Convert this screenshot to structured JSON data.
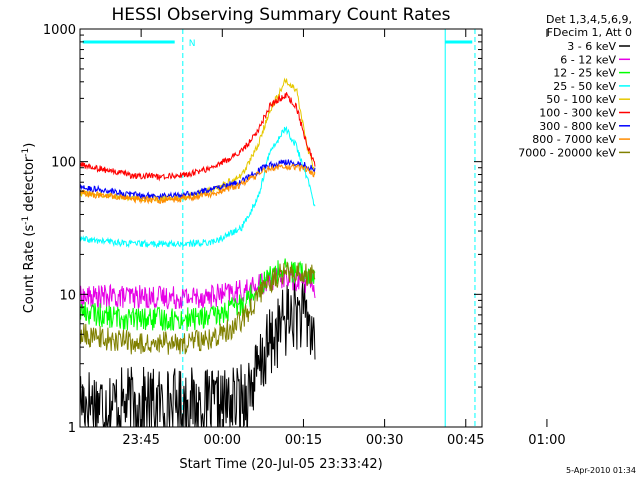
{
  "chart_data": {
    "type": "line",
    "title": "HESSI Observing Summary Count Rates",
    "xlabel": "Start Time (20-Jul-05 23:33:42)",
    "ylabel": "Count Rate (s⁻¹ detector⁻¹)",
    "y_scale": "log",
    "ylim": [
      1,
      1000
    ],
    "xlim_minutes_after_start": [
      0,
      74.3
    ],
    "x_ticks": [
      "23:45",
      "00:00",
      "00:15",
      "00:30",
      "00:45",
      "01:00"
    ],
    "y_ticks": [
      "1",
      "10",
      "100",
      "1000"
    ],
    "legend_header": [
      "Det 1,3,4,5,6,9,",
      "FDecim 1, Att 0"
    ],
    "legend_position": "right",
    "flag_label": "N",
    "date_stamp": "5-Apr-2010 01:34",
    "x": [
      0,
      5,
      10,
      15,
      20,
      25,
      30,
      33,
      35,
      38,
      40,
      42,
      43.5
    ],
    "series": [
      {
        "name": "3 - 6 keV",
        "color": "#000000",
        "values": [
          1.6,
          1.5,
          1.5,
          1.5,
          1.5,
          1.4,
          1.6,
          2.6,
          4.2,
          6.5,
          7.2,
          6.4,
          4.5
        ]
      },
      {
        "name": "6 - 12 keV",
        "color": "#e600e6",
        "values": [
          9.5,
          9.6,
          9.6,
          9.5,
          9.5,
          9.8,
          10.5,
          11.5,
          12.8,
          13.5,
          13.0,
          12.5,
          11.5
        ]
      },
      {
        "name": "12 - 25 keV",
        "color": "#00ff00",
        "values": [
          7.5,
          6.8,
          6.5,
          6.5,
          6.5,
          6.8,
          8.5,
          11.5,
          13.8,
          15.5,
          14.5,
          14.2,
          13.0
        ]
      },
      {
        "name": "25 - 50 keV",
        "color": "#00ffff",
        "values": [
          26,
          25,
          24,
          24,
          24,
          25,
          32,
          55,
          115,
          180,
          130,
          75,
          45
        ]
      },
      {
        "name": "50 - 100 keV",
        "color": "#e6c800",
        "values": [
          58,
          56,
          53,
          53,
          55,
          62,
          80,
          135,
          240,
          410,
          350,
          130,
          80
        ]
      },
      {
        "name": "100 - 300 keV",
        "color": "#ff0000",
        "values": [
          95,
          86,
          78,
          77,
          80,
          92,
          120,
          175,
          260,
          320,
          260,
          130,
          95
        ]
      },
      {
        "name": "300 - 800 keV",
        "color": "#0000ff",
        "values": [
          64,
          60,
          56,
          55,
          57,
          62,
          72,
          85,
          95,
          100,
          97,
          93,
          86
        ]
      },
      {
        "name": "800 - 7000 keV",
        "color": "#ff8c00",
        "values": [
          58,
          55,
          52,
          51,
          53,
          58,
          68,
          80,
          89,
          92,
          90,
          87,
          80
        ]
      },
      {
        "name": "7000 - 20000 keV",
        "color": "#808000",
        "values": [
          5.0,
          4.6,
          4.3,
          4.3,
          4.3,
          4.6,
          6.5,
          9.5,
          12.5,
          15.0,
          14.5,
          14.0,
          13.5
        ]
      }
    ],
    "markers_minutes": [
      {
        "kind": "solid",
        "x": 0
      },
      {
        "kind": "dashed",
        "x": 19
      },
      {
        "kind": "solid",
        "x": 67.5
      },
      {
        "kind": "dashed",
        "x": 73
      }
    ],
    "flag_segments_minutes": [
      [
        0.5,
        17.5
      ],
      [
        67.5,
        72.5
      ]
    ],
    "grid": false
  }
}
